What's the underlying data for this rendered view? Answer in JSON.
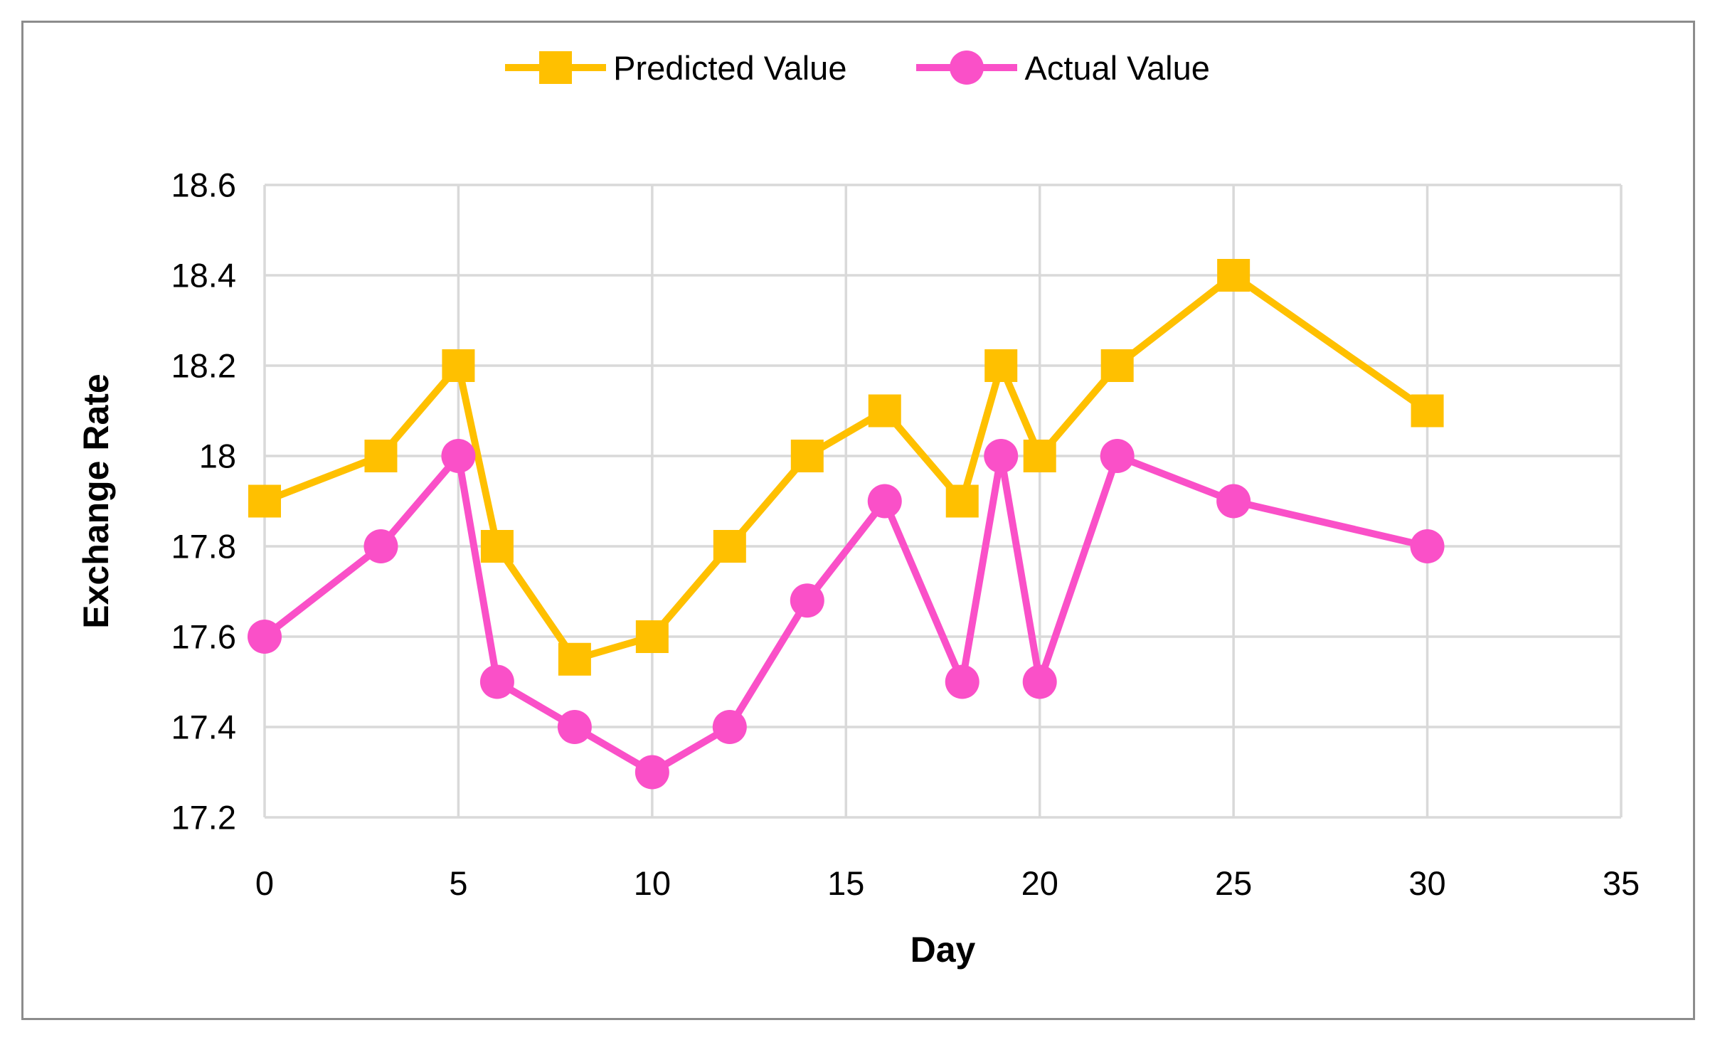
{
  "chart_data": {
    "type": "line",
    "title": "",
    "xlabel": "Day",
    "ylabel": "Exchange Rate",
    "xlim": [
      0,
      35
    ],
    "ylim": [
      17.2,
      18.6
    ],
    "xticks": [
      0,
      5,
      10,
      15,
      20,
      25,
      30,
      35
    ],
    "yticks": [
      18.6,
      18.4,
      18.2,
      18,
      17.8,
      17.6,
      17.4,
      17.2
    ],
    "grid": true,
    "legend_position": "top-center",
    "gridline_color": "#D9D9D9",
    "text_color": "#000000",
    "frame_color": "#8C8C8C",
    "x": [
      0,
      3,
      5,
      6,
      8,
      10,
      12,
      14,
      16,
      18,
      19,
      20,
      22,
      25,
      30
    ],
    "series": [
      {
        "name": "Predicted Value",
        "color": "#FFC000",
        "marker": "square",
        "values": [
          17.9,
          18.0,
          18.2,
          17.8,
          17.55,
          17.6,
          17.8,
          18.0,
          18.1,
          17.9,
          18.2,
          18.0,
          18.2,
          18.4,
          18.1
        ]
      },
      {
        "name": "Actual Value",
        "color": "#FA50C8",
        "marker": "circle",
        "values": [
          17.6,
          17.8,
          18.0,
          17.5,
          17.4,
          17.3,
          17.4,
          17.68,
          17.9,
          17.5,
          18.0,
          17.5,
          18.0,
          17.9,
          17.8
        ]
      }
    ]
  }
}
